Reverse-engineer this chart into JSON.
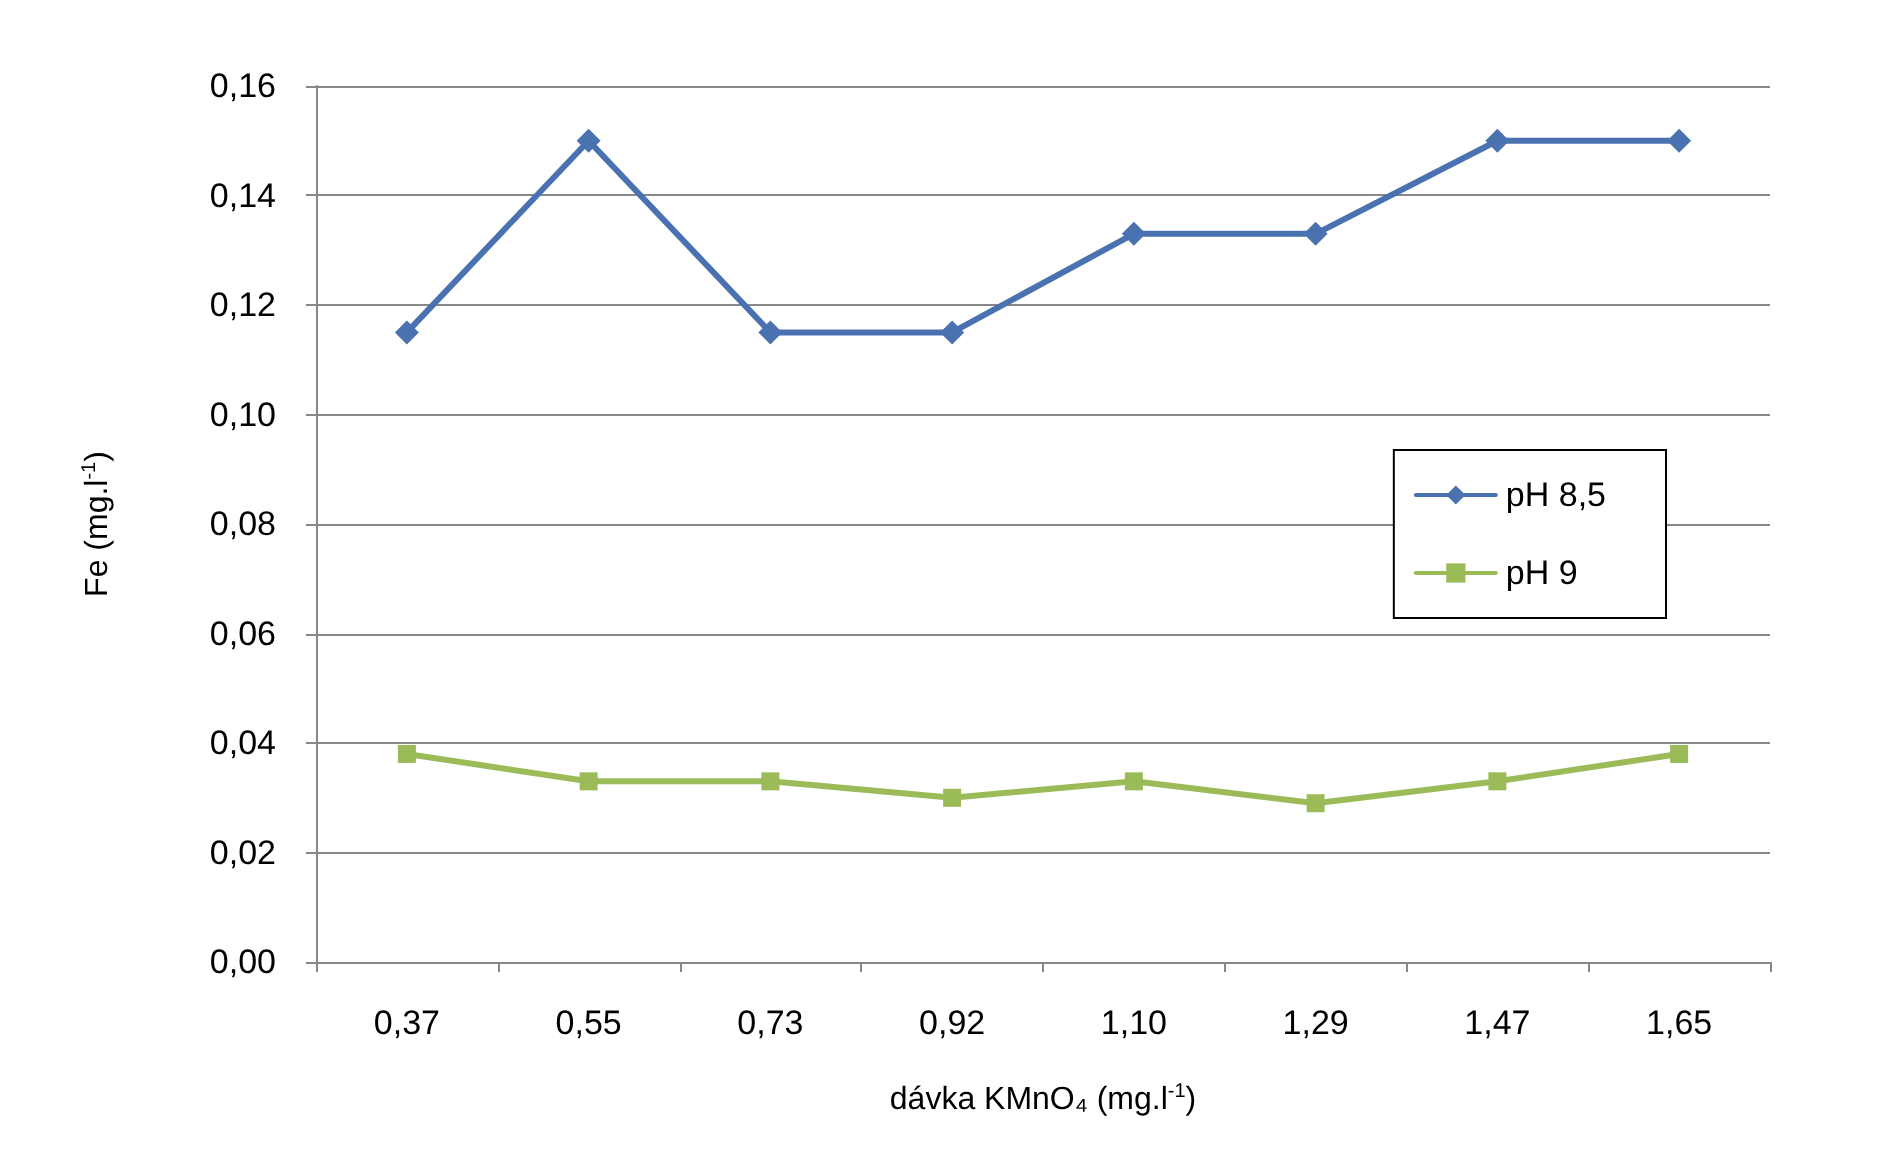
{
  "chart_data": {
    "type": "line",
    "xlabel": "dávka KMnO₄ (mg.l$^{-1}$)",
    "ylabel": "Fe (mg.l$^{-1}$)",
    "categories": [
      "0,37",
      "0,55",
      "0,73",
      "0,92",
      "1,10",
      "1,29",
      "1,47",
      "1,65"
    ],
    "series": [
      {
        "name": "pH 8,5",
        "color": "#4a72b0",
        "marker": "diamond",
        "values": [
          0.115,
          0.15,
          0.115,
          0.115,
          0.133,
          0.133,
          0.15,
          0.15
        ]
      },
      {
        "name": "pH 9",
        "color": "#9bbb59",
        "marker": "square",
        "values": [
          0.038,
          0.033,
          0.033,
          0.03,
          0.033,
          0.029,
          0.033,
          0.038
        ]
      }
    ],
    "ylim": [
      0,
      0.16
    ],
    "yticks": [
      {
        "value": 0,
        "label": "0,00"
      },
      {
        "value": 0.02,
        "label": "0,02"
      },
      {
        "value": 0.04,
        "label": "0,04"
      },
      {
        "value": 0.06,
        "label": "0,06"
      },
      {
        "value": 0.08,
        "label": "0,08"
      },
      {
        "value": 0.1,
        "label": "0,10"
      },
      {
        "value": 0.12,
        "label": "0,12"
      },
      {
        "value": 0.14,
        "label": "0,14"
      },
      {
        "value": 0.16,
        "label": "0,16"
      }
    ],
    "grid": "y",
    "legend": "right",
    "line_style": "solid"
  }
}
